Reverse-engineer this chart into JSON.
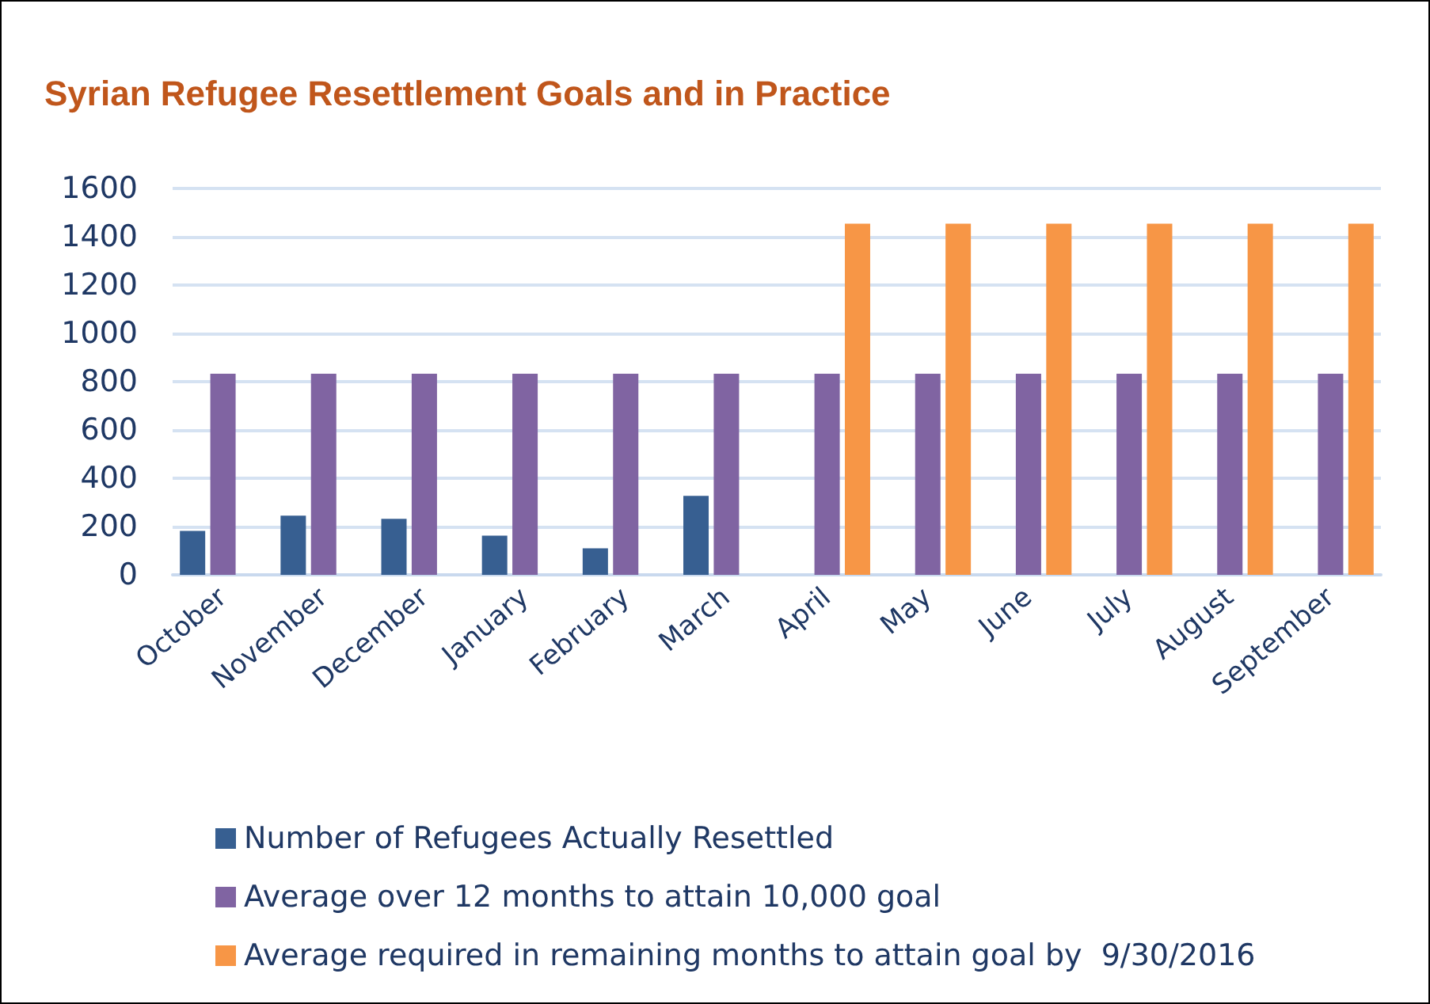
{
  "chart_data": {
    "type": "bar",
    "title": "Syrian Refugee Resettlement Goals and in Practice",
    "categories": [
      "October",
      "November",
      "December",
      "January",
      "February",
      "March",
      "April",
      "May",
      "June",
      "July",
      "August",
      "September"
    ],
    "series": [
      {
        "name": "Number of Refugees Actually Resettled",
        "color": "#375f91",
        "values": [
          182,
          245,
          232,
          162,
          110,
          327,
          null,
          null,
          null,
          null,
          null,
          null
        ]
      },
      {
        "name": "Average over 12 months to attain 10,000 goal",
        "color": "#8064a2",
        "values": [
          833,
          833,
          833,
          833,
          833,
          833,
          833,
          833,
          833,
          833,
          833,
          833
        ]
      },
      {
        "name": "Average required in remaining months to attain goal by  9/30/2016",
        "color": "#f79646",
        "values": [
          null,
          null,
          null,
          null,
          null,
          null,
          1454,
          1454,
          1454,
          1454,
          1454,
          1454
        ]
      }
    ],
    "ylim": [
      0,
      1600
    ],
    "yticks": [
      0,
      200,
      400,
      600,
      800,
      1000,
      1200,
      1400,
      1600
    ],
    "grid": "y",
    "legend": "bottom"
  }
}
